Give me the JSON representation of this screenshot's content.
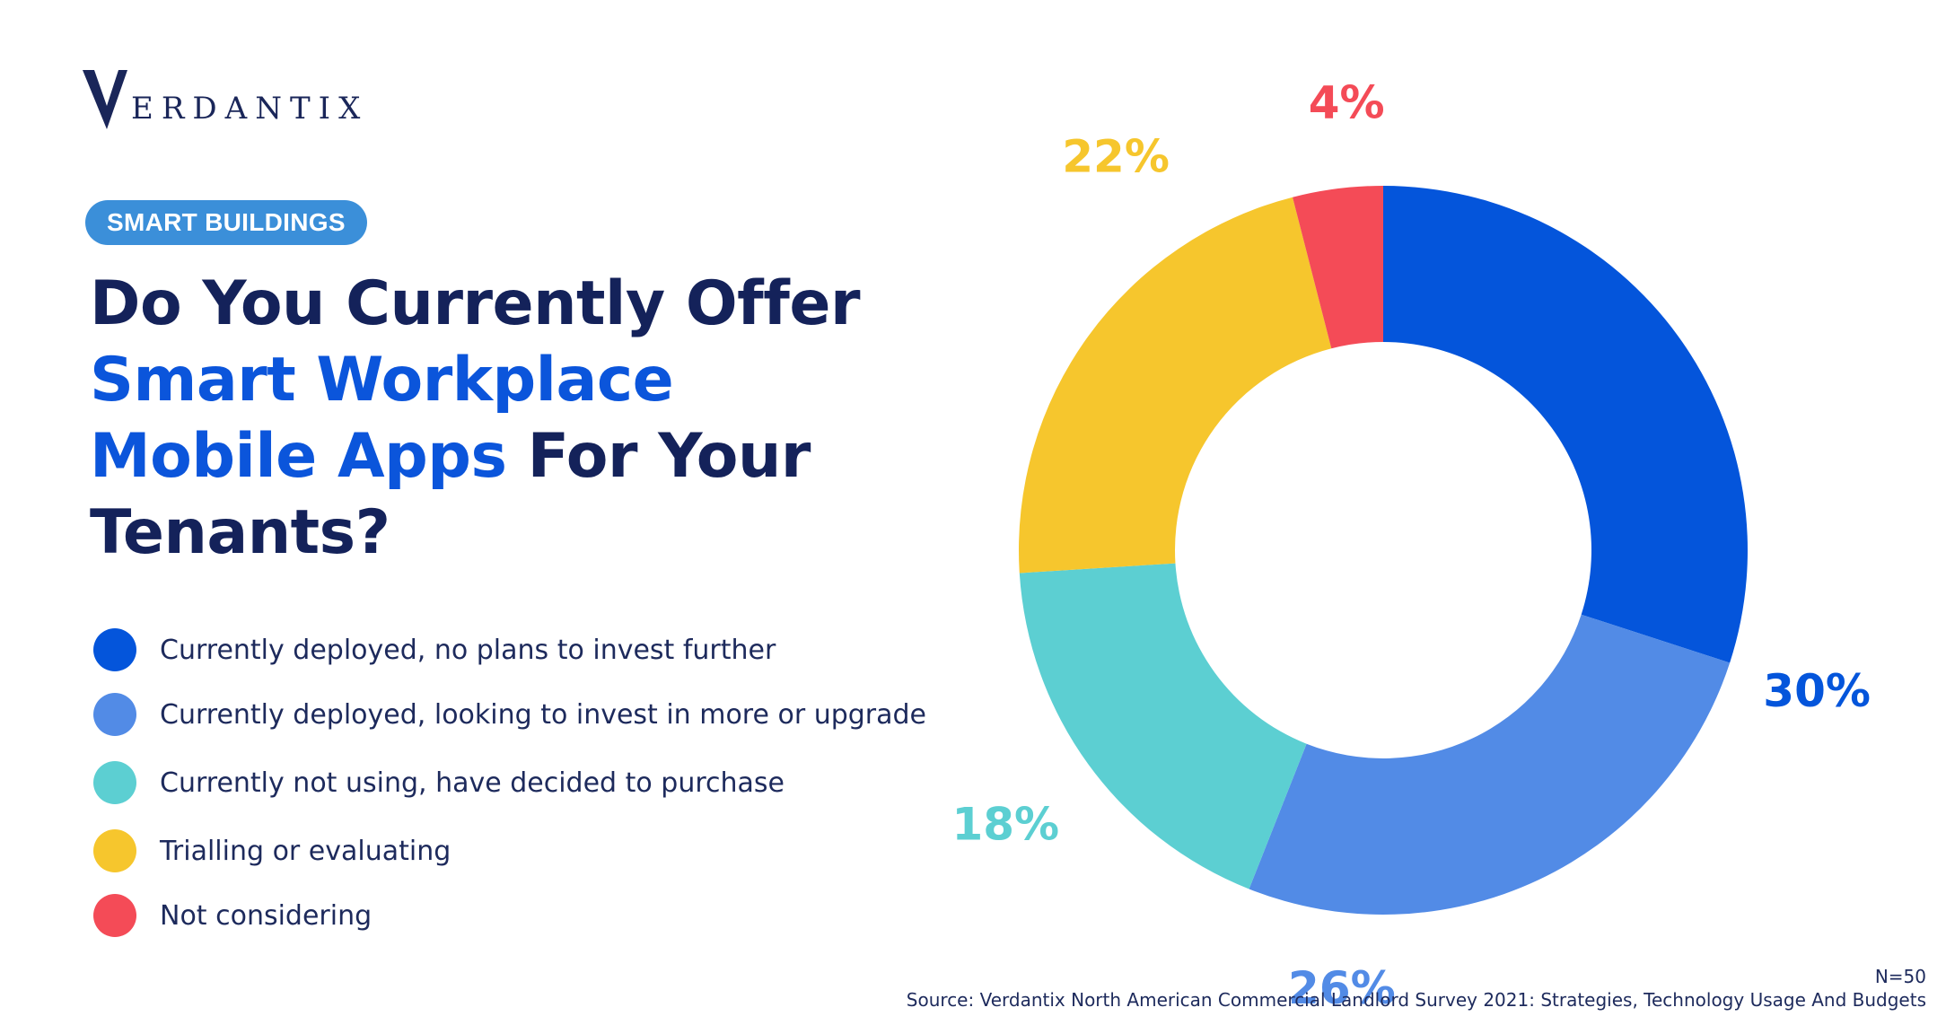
{
  "brand": {
    "logo_letter": "V",
    "logo_text": "ERDANTIX",
    "logo_color": "#1a2659"
  },
  "badge": {
    "label": "SMART BUILDINGS",
    "color": "#3b8fd9"
  },
  "title": {
    "part1": "Do You Currently Offer ",
    "highlight": "Smart Workplace Mobile Apps",
    "part2": " For Your Tenants?",
    "color": "#14225a",
    "highlight_color": "#0b55db"
  },
  "chart_data": {
    "type": "pie",
    "variant": "donut",
    "categories": [
      "Currently deployed, no plans to invest further",
      "Currently deployed, looking to invest in more or upgrade",
      "Currently not using, have decided to purchase",
      "Trialling or evaluating",
      "Not considering"
    ],
    "values": [
      30,
      26,
      18,
      22,
      4
    ],
    "labels": [
      "30%",
      "26%",
      "18%",
      "22%",
      "4%"
    ],
    "colors": [
      "#0455db",
      "#528be6",
      "#5ccfd2",
      "#f6c62d",
      "#f44b57"
    ],
    "unit": "%",
    "legend_position": "left"
  },
  "footer": {
    "n": "N=50",
    "source": "Source: Verdantix North American Commercial Landlord Survey 2021: Strategies, Technology Usage And Budgets"
  }
}
